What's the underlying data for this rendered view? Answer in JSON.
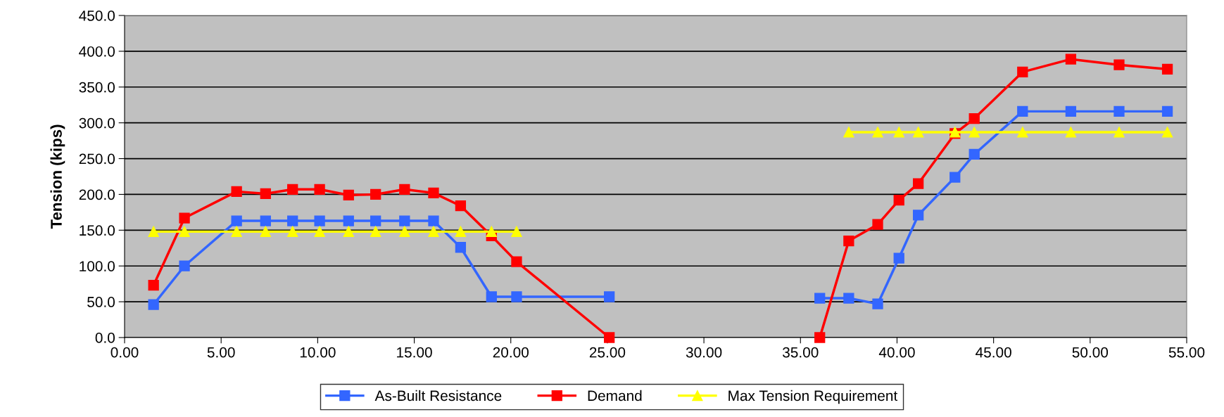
{
  "chart_data": {
    "type": "line",
    "ylabel": "Tension (kips)",
    "series": [
      {
        "name": "As-Built Resistance",
        "color": "#3366ff",
        "marker": "square",
        "x": [
          1.5,
          3.1,
          5.8,
          7.3,
          8.7,
          10.1,
          11.6,
          13.0,
          14.5,
          16.0,
          17.4,
          19.0,
          20.3,
          25.1,
          30.5,
          36.0,
          37.5,
          39.0,
          40.1,
          41.1,
          43.0,
          44.0,
          46.5,
          49.0,
          51.5,
          54.0
        ],
        "values": [
          46,
          100,
          163,
          163,
          163,
          163,
          163,
          163,
          163,
          163,
          126,
          57,
          57,
          57,
          null,
          55,
          55,
          47,
          111,
          171,
          224,
          256,
          316,
          316,
          316,
          316
        ]
      },
      {
        "name": "Demand",
        "color": "#ff0000",
        "marker": "square",
        "x": [
          1.5,
          3.1,
          5.8,
          7.3,
          8.7,
          10.1,
          11.6,
          13.0,
          14.5,
          16.0,
          17.4,
          19.0,
          20.3,
          25.1,
          30.5,
          36.0,
          37.5,
          39.0,
          40.1,
          41.1,
          43.0,
          44.0,
          46.5,
          49.0,
          51.5,
          54.0
        ],
        "values": [
          73,
          167,
          204,
          201,
          207,
          207,
          199,
          200,
          207,
          202,
          184,
          142,
          106,
          0,
          null,
          0,
          135,
          158,
          192,
          215,
          285,
          306,
          371,
          389,
          381,
          375
        ]
      },
      {
        "name": "Max Tension Requirement",
        "color": "#ffff00",
        "marker": "triangle",
        "x": [
          1.5,
          3.1,
          5.8,
          7.3,
          8.7,
          10.1,
          11.6,
          13.0,
          14.5,
          16.0,
          17.4,
          19.0,
          20.3,
          30.5,
          37.5,
          39.0,
          40.1,
          41.1,
          43.0,
          44.0,
          46.5,
          49.0,
          51.5,
          54.0
        ],
        "values": [
          148,
          148,
          148,
          148,
          148,
          148,
          148,
          148,
          148,
          148,
          148,
          148,
          148,
          null,
          287,
          287,
          287,
          287,
          287,
          287,
          287,
          287,
          287,
          287
        ]
      }
    ],
    "xlim": [
      0,
      55
    ],
    "ylim": [
      0,
      450
    ],
    "xticks": [
      {
        "value": 0,
        "label": "0.00"
      },
      {
        "value": 5,
        "label": "5.00"
      },
      {
        "value": 10,
        "label": "10.00"
      },
      {
        "value": 15,
        "label": "15.00"
      },
      {
        "value": 20,
        "label": "20.00"
      },
      {
        "value": 25,
        "label": "25.00"
      },
      {
        "value": 30,
        "label": "30.00"
      },
      {
        "value": 35,
        "label": "35.00"
      },
      {
        "value": 40,
        "label": "40.00"
      },
      {
        "value": 45,
        "label": "45.00"
      },
      {
        "value": 50,
        "label": "50.00"
      },
      {
        "value": 55,
        "label": "55.00"
      }
    ],
    "yticks": [
      {
        "value": 0,
        "label": "0.0"
      },
      {
        "value": 50,
        "label": "50.0"
      },
      {
        "value": 100,
        "label": "100.0"
      },
      {
        "value": 150,
        "label": "150.0"
      },
      {
        "value": 200,
        "label": "200.0"
      },
      {
        "value": 250,
        "label": "250.0"
      },
      {
        "value": 300,
        "label": "300.0"
      },
      {
        "value": 350,
        "label": "350.0"
      },
      {
        "value": 400,
        "label": "400.0"
      },
      {
        "value": 450,
        "label": "450.0"
      }
    ],
    "grid": "y",
    "legend": "bottom",
    "line_style": "solid"
  }
}
